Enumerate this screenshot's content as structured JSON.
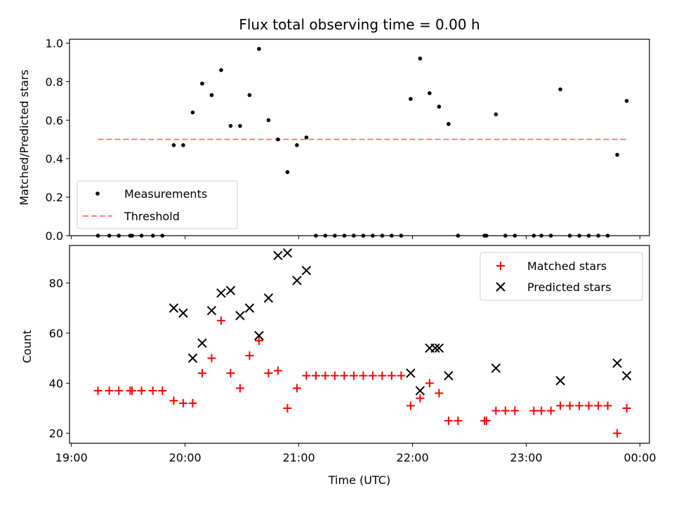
{
  "chart_data": [
    {
      "type": "scatter",
      "title": "Flux total observing time = 0.00 h",
      "xlabel": "",
      "ylabel": "Matched/Predicted stars",
      "ylim": [
        0,
        1.02
      ],
      "yticks": [
        0.0,
        0.2,
        0.4,
        0.6,
        0.8,
        1.0
      ],
      "ytick_labels": [
        "0.0",
        "0.2",
        "0.4",
        "0.6",
        "0.8",
        "1.0"
      ],
      "legend": {
        "position": "lower-left",
        "entries": [
          "Measurements",
          "Threshold"
        ]
      },
      "threshold": {
        "name": "Threshold",
        "value": 0.5,
        "x_start": "19:14",
        "x_end": "23:53",
        "color": "#ff7f7f"
      },
      "series": [
        {
          "name": "Measurements",
          "marker": "dot",
          "color": "#000000",
          "x": [
            "19:14",
            "19:20",
            "19:25",
            "19:31",
            "19:32",
            "19:37",
            "19:43",
            "19:48",
            "19:54",
            "19:59",
            "20:04",
            "20:09",
            "20:14",
            "20:19",
            "20:24",
            "20:29",
            "20:34",
            "20:39",
            "20:44",
            "20:49",
            "20:54",
            "20:59",
            "21:04",
            "21:09",
            "21:14",
            "21:19",
            "21:24",
            "21:29",
            "21:34",
            "21:39",
            "21:44",
            "21:49",
            "21:54",
            "21:59",
            "22:04",
            "22:09",
            "22:14",
            "22:19",
            "22:24",
            "22:38",
            "22:39",
            "22:44",
            "22:49",
            "22:54",
            "23:04",
            "23:08",
            "23:13",
            "23:18",
            "23:23",
            "23:28",
            "23:33",
            "23:38",
            "23:43",
            "23:48",
            "23:53"
          ],
          "values": [
            0,
            0,
            0,
            0,
            0,
            0,
            0,
            0,
            0.47,
            0.47,
            0.64,
            0.79,
            0.73,
            0.86,
            0.57,
            0.57,
            0.73,
            0.97,
            0.6,
            0.5,
            0.33,
            0.47,
            0.51,
            0,
            0,
            0,
            0,
            0,
            0,
            0,
            0,
            0,
            0,
            0.71,
            0.92,
            0.74,
            0.67,
            0.58,
            0,
            0,
            0,
            0.63,
            0,
            0,
            0,
            0,
            0,
            0.76,
            0,
            0,
            0,
            0,
            0,
            0.42,
            0.7
          ]
        }
      ]
    },
    {
      "type": "scatter",
      "title": "",
      "xlabel": "Time (UTC)",
      "ylabel": "Count",
      "ylim": [
        16,
        95
      ],
      "yticks": [
        20,
        40,
        60,
        80
      ],
      "ytick_labels": [
        "20",
        "40",
        "60",
        "80"
      ],
      "xlim": [
        "18:59",
        "00:05"
      ],
      "xticks": [
        "19:00",
        "20:00",
        "21:00",
        "22:00",
        "23:00",
        "00:00"
      ],
      "xtick_labels": [
        "19:00",
        "20:00",
        "21:00",
        "22:00",
        "23:00",
        "00:00"
      ],
      "legend": {
        "position": "upper-right",
        "entries": [
          "Matched stars",
          "Predicted stars"
        ]
      },
      "series": [
        {
          "name": "Matched stars",
          "marker": "plus",
          "color": "#ff0000",
          "x": [
            "19:14",
            "19:20",
            "19:25",
            "19:31",
            "19:32",
            "19:37",
            "19:43",
            "19:48",
            "19:54",
            "19:59",
            "20:04",
            "20:09",
            "20:14",
            "20:19",
            "20:24",
            "20:29",
            "20:34",
            "20:39",
            "20:44",
            "20:49",
            "20:54",
            "20:59",
            "21:04",
            "21:09",
            "21:14",
            "21:19",
            "21:24",
            "21:29",
            "21:34",
            "21:39",
            "21:44",
            "21:49",
            "21:54",
            "21:59",
            "22:04",
            "22:09",
            "22:14",
            "22:19",
            "22:24",
            "22:38",
            "22:39",
            "22:44",
            "22:49",
            "22:54",
            "23:04",
            "23:08",
            "23:13",
            "23:18",
            "23:23",
            "23:28",
            "23:33",
            "23:38",
            "23:43",
            "23:48",
            "23:53"
          ],
          "values": [
            37,
            37,
            37,
            37,
            37,
            37,
            37,
            37,
            33,
            32,
            32,
            44,
            50,
            65,
            44,
            38,
            51,
            57,
            44,
            45,
            30,
            38,
            43,
            43,
            43,
            43,
            43,
            43,
            43,
            43,
            43,
            43,
            43,
            31,
            34,
            40,
            36,
            25,
            25,
            25,
            25,
            29,
            29,
            29,
            29,
            29,
            29,
            31,
            31,
            31,
            31,
            31,
            31,
            20,
            30
          ]
        },
        {
          "name": "Predicted stars",
          "marker": "x",
          "color": "#000000",
          "x": [
            "19:54",
            "19:59",
            "20:04",
            "20:09",
            "20:14",
            "20:19",
            "20:24",
            "20:29",
            "20:34",
            "20:39",
            "20:44",
            "20:49",
            "20:54",
            "20:59",
            "21:04",
            "21:59",
            "22:04",
            "22:09",
            "22:12",
            "22:14",
            "22:19",
            "22:44",
            "23:18",
            "23:48",
            "23:53"
          ],
          "values": [
            70,
            68,
            50,
            56,
            69,
            76,
            77,
            67,
            70,
            59,
            74,
            91,
            92,
            81,
            85,
            44,
            37,
            54,
            54,
            54,
            43,
            46,
            41,
            48,
            43
          ]
        }
      ]
    }
  ]
}
